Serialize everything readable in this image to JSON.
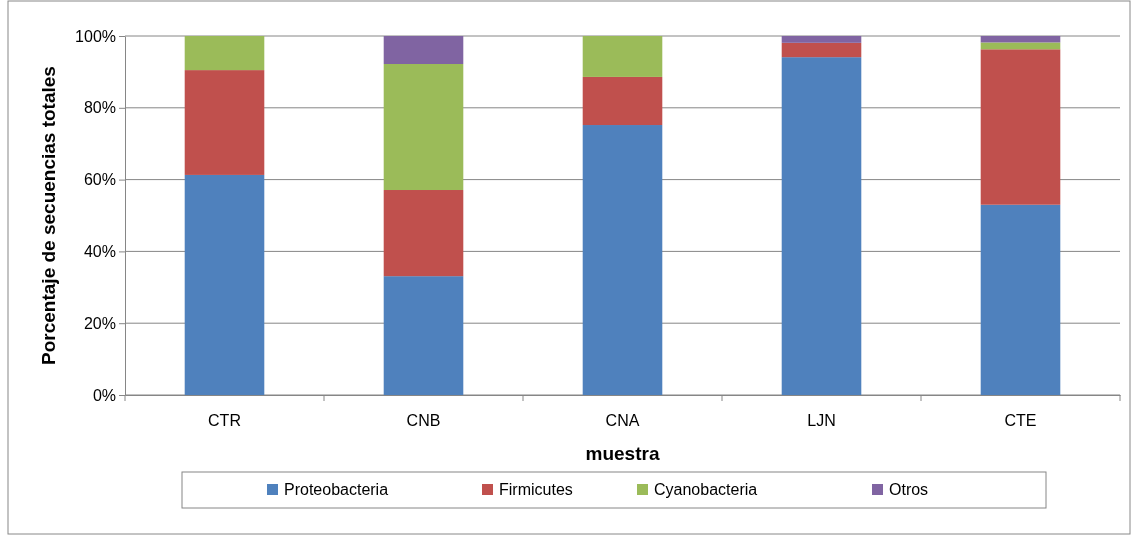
{
  "chart_data": {
    "type": "bar",
    "stacked": true,
    "xlabel": "muestra",
    "ylabel": "Porcentaje de secuencias totales",
    "categories": [
      "CTR",
      "CNB",
      "CNA",
      "LJN",
      "CTE"
    ],
    "series": [
      {
        "name": "Proteobacteria",
        "color": "#4f81bd",
        "values": [
          61.3,
          33.1,
          75.2,
          94.1,
          53
        ]
      },
      {
        "name": "Firmicutes",
        "color": "#c0504d",
        "values": [
          29.2,
          24,
          13.4,
          4,
          43.3
        ]
      },
      {
        "name": "Cyanobacteria",
        "color": "#9bbb59",
        "values": [
          9.5,
          35.1,
          11.4,
          0,
          1.9
        ]
      },
      {
        "name": "Otros",
        "color": "#8064a2",
        "values": [
          0,
          7.8,
          0,
          1.9,
          1.8
        ]
      }
    ],
    "ylim": [
      0,
      100
    ],
    "yticks": [
      {
        "value": 0,
        "label": "0%"
      },
      {
        "value": 20,
        "label": "20%"
      },
      {
        "value": 40,
        "label": "40%"
      },
      {
        "value": 60,
        "label": "60%"
      },
      {
        "value": 80,
        "label": "80%"
      },
      {
        "value": 100,
        "label": "100%"
      }
    ],
    "grid": "y",
    "legend": "bottom"
  }
}
